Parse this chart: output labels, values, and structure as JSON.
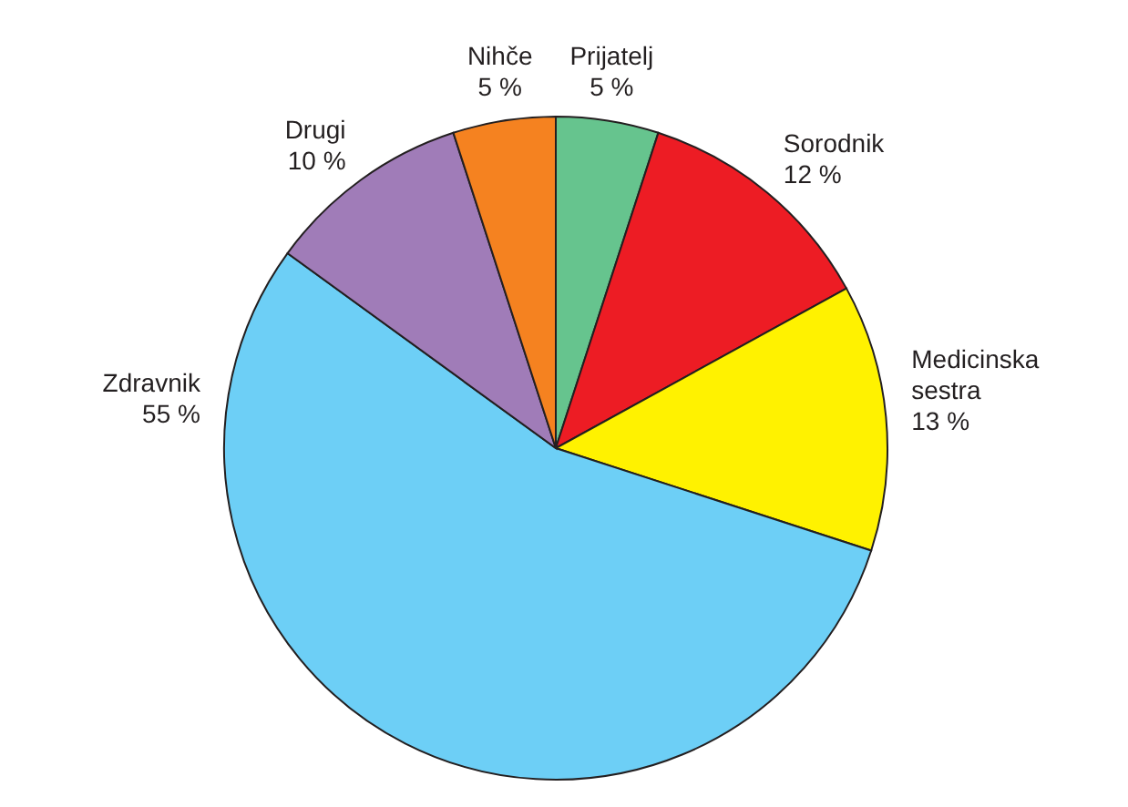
{
  "chart_data": {
    "type": "pie",
    "categories": [
      "Prijatelj",
      "Sorodnik",
      "Medicinska sestra",
      "Zdravnik",
      "Drugi",
      "Nihče"
    ],
    "values": [
      5,
      12,
      13,
      55,
      10,
      5
    ],
    "value_labels": [
      "5 %",
      "12 %",
      "13 %",
      "55 %",
      "10 %",
      "5 %"
    ],
    "colors": [
      "#66c48e",
      "#ed1c24",
      "#fff200",
      "#6dcff6",
      "#a07cb8",
      "#f58220"
    ],
    "legend": false
  }
}
